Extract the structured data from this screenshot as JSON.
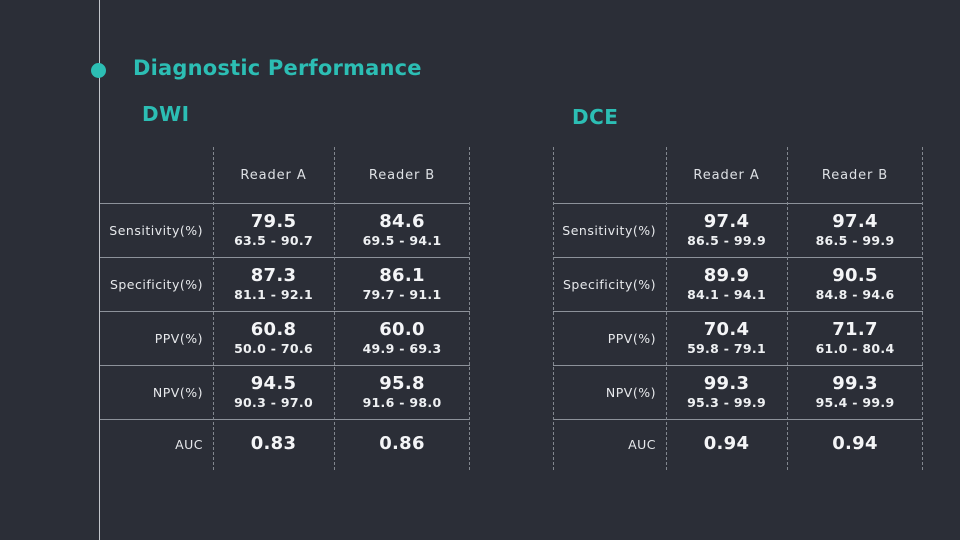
{
  "slide": {
    "title": "Diagnostic Performance",
    "accent_color": "#2cbeb4"
  },
  "tables": [
    {
      "heading": "DWI",
      "columns": [
        "Reader A",
        "Reader B"
      ],
      "rows": [
        {
          "label": "Sensitivity(%)",
          "values": [
            {
              "main": "79.5",
              "ci": "63.5 - 90.7"
            },
            {
              "main": "84.6",
              "ci": "69.5 - 94.1"
            }
          ]
        },
        {
          "label": "Specificity(%)",
          "values": [
            {
              "main": "87.3",
              "ci": "81.1 - 92.1"
            },
            {
              "main": "86.1",
              "ci": "79.7 - 91.1"
            }
          ]
        },
        {
          "label": "PPV(%)",
          "values": [
            {
              "main": "60.8",
              "ci": "50.0 - 70.6"
            },
            {
              "main": "60.0",
              "ci": "49.9 - 69.3"
            }
          ]
        },
        {
          "label": "NPV(%)",
          "values": [
            {
              "main": "94.5",
              "ci": "90.3 - 97.0"
            },
            {
              "main": "95.8",
              "ci": "91.6 - 98.0"
            }
          ]
        },
        {
          "label": "AUC",
          "values": [
            {
              "main": "0.83"
            },
            {
              "main": "0.86"
            }
          ]
        }
      ]
    },
    {
      "heading": "DCE",
      "columns": [
        "Reader A",
        "Reader B"
      ],
      "rows": [
        {
          "label": "Sensitivity(%)",
          "values": [
            {
              "main": "97.4",
              "ci": "86.5 - 99.9"
            },
            {
              "main": "97.4",
              "ci": "86.5 - 99.9"
            }
          ]
        },
        {
          "label": "Specificity(%)",
          "values": [
            {
              "main": "89.9",
              "ci": "84.1 - 94.1"
            },
            {
              "main": "90.5",
              "ci": "84.8 - 94.6"
            }
          ]
        },
        {
          "label": "PPV(%)",
          "values": [
            {
              "main": "70.4",
              "ci": "59.8 - 79.1"
            },
            {
              "main": "71.7",
              "ci": "61.0 - 80.4"
            }
          ]
        },
        {
          "label": "NPV(%)",
          "values": [
            {
              "main": "99.3",
              "ci": "95.3 - 99.9"
            },
            {
              "main": "99.3",
              "ci": "95.4 - 99.9"
            }
          ]
        },
        {
          "label": "AUC",
          "values": [
            {
              "main": "0.94"
            },
            {
              "main": "0.94"
            }
          ]
        }
      ]
    }
  ]
}
